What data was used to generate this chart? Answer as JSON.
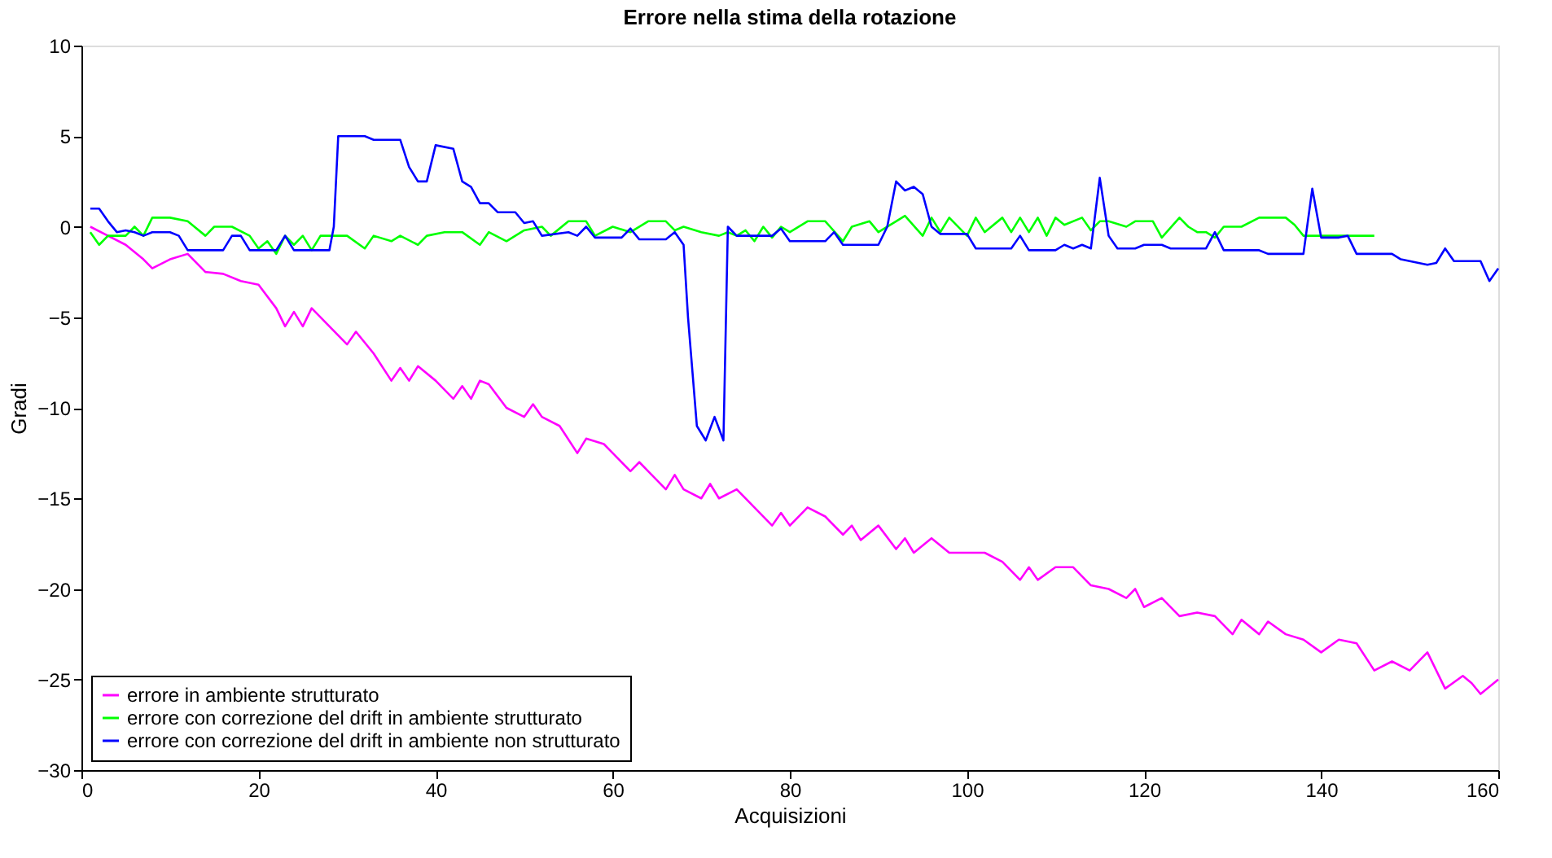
{
  "chart_data": {
    "type": "line",
    "title": "Errore nella stima della rotazione",
    "xlabel": "Acquisizioni",
    "ylabel": "Gradi",
    "xlim": [
      0,
      160
    ],
    "xticks": [
      0,
      20,
      40,
      60,
      80,
      100,
      120,
      140,
      160
    ],
    "ylim": [
      -30,
      10
    ],
    "yticks": [
      -30,
      -25,
      -20,
      -15,
      -10,
      -5,
      0,
      5,
      10
    ],
    "grid": false,
    "legend": "bottom left",
    "marker": "none",
    "line_style": "solid",
    "series": [
      {
        "name": "errore in ambiente strutturato",
        "color": "#ff00ff",
        "x": [
          1,
          3,
          5,
          7,
          8,
          10,
          12,
          14,
          16,
          18,
          20,
          22,
          23,
          24,
          25,
          26,
          28,
          30,
          31,
          33,
          35,
          36,
          37,
          38,
          40,
          42,
          43,
          44,
          45,
          46,
          48,
          50,
          51,
          52,
          54,
          56,
          57,
          59,
          60,
          62,
          63,
          64,
          66,
          67,
          68,
          70,
          71,
          72,
          74,
          76,
          78,
          79,
          80,
          82,
          84,
          86,
          87,
          88,
          90,
          92,
          93,
          94,
          96,
          98,
          100,
          102,
          104,
          106,
          107,
          108,
          110,
          112,
          114,
          116,
          118,
          119,
          120,
          122,
          124,
          126,
          128,
          130,
          131,
          133,
          134,
          136,
          138,
          140,
          142,
          144,
          146,
          148,
          150,
          152,
          154,
          156,
          157,
          158,
          160
        ],
        "values": [
          0,
          -0.5,
          -1,
          -1.8,
          -2.3,
          -1.8,
          -1.5,
          -2.5,
          -2.6,
          -3,
          -3.2,
          -4.5,
          -5.5,
          -4.7,
          -5.5,
          -4.5,
          -5.5,
          -6.5,
          -5.8,
          -7,
          -8.5,
          -7.8,
          -8.5,
          -7.7,
          -8.5,
          -9.5,
          -8.8,
          -9.5,
          -8.5,
          -8.7,
          -10,
          -10.5,
          -9.8,
          -10.5,
          -11,
          -12.5,
          -11.7,
          -12,
          -12.5,
          -13.5,
          -13,
          -13.5,
          -14.5,
          -13.7,
          -14.5,
          -15,
          -14.2,
          -15,
          -14.5,
          -15.5,
          -16.5,
          -15.8,
          -16.5,
          -15.5,
          -16,
          -17,
          -16.5,
          -17.3,
          -16.5,
          -17.8,
          -17.2,
          -18,
          -17.2,
          -18,
          -18,
          -18,
          -18.5,
          -19.5,
          -18.8,
          -19.5,
          -18.8,
          -18.8,
          -19.8,
          -20,
          -20.5,
          -20,
          -21,
          -20.5,
          -21.5,
          -21.3,
          -21.5,
          -22.5,
          -21.7,
          -22.5,
          -21.8,
          -22.5,
          -22.8,
          -23.5,
          -22.8,
          -23,
          -24.5,
          -24,
          -24.5,
          -23.5,
          -25.5,
          -24.8,
          -25.2,
          -25.8,
          -25
        ]
      },
      {
        "name": "errore con correzione del drift in ambiente strutturato",
        "color": "#00ff00",
        "x": [
          1,
          2,
          3,
          5,
          6,
          7,
          8,
          10,
          12,
          14,
          15,
          17,
          19,
          20,
          21,
          22,
          23,
          24,
          25,
          26,
          27,
          29,
          30,
          32,
          33,
          35,
          36,
          38,
          39,
          41,
          43,
          45,
          46,
          48,
          50,
          52,
          53,
          55,
          57,
          58,
          60,
          62,
          64,
          66,
          67,
          68,
          70,
          72,
          73,
          74,
          75,
          76,
          77,
          78,
          79,
          80,
          82,
          84,
          86,
          87,
          89,
          90,
          92,
          93,
          95,
          96,
          97,
          98,
          100,
          101,
          102,
          104,
          105,
          106,
          107,
          108,
          109,
          110,
          111,
          113,
          114,
          115,
          116,
          118,
          119,
          121,
          122,
          124,
          125,
          126,
          127,
          128,
          129,
          131,
          133,
          136,
          137,
          138,
          140,
          146
        ],
        "values": [
          -0.3,
          -1,
          -0.5,
          -0.5,
          0,
          -0.5,
          0.5,
          0.5,
          0.3,
          -0.5,
          0,
          0,
          -0.5,
          -1.2,
          -0.8,
          -1.5,
          -0.5,
          -1,
          -0.5,
          -1.3,
          -0.5,
          -0.5,
          -0.5,
          -1.2,
          -0.5,
          -0.8,
          -0.5,
          -1,
          -0.5,
          -0.3,
          -0.3,
          -1,
          -0.3,
          -0.8,
          -0.2,
          0,
          -0.5,
          0.3,
          0.3,
          -0.5,
          0,
          -0.3,
          0.3,
          0.3,
          -0.2,
          0,
          -0.3,
          -0.5,
          -0.3,
          -0.5,
          -0.2,
          -0.8,
          0,
          -0.6,
          0,
          -0.3,
          0.3,
          0.3,
          -0.8,
          0,
          0.3,
          -0.3,
          0.3,
          0.6,
          -0.5,
          0.5,
          -0.3,
          0.5,
          -0.5,
          0.5,
          -0.3,
          0.5,
          -0.3,
          0.5,
          -0.3,
          0.5,
          -0.5,
          0.5,
          0.1,
          0.5,
          -0.2,
          0.3,
          0.3,
          0,
          0.3,
          0.3,
          -0.6,
          0.5,
          0,
          -0.3,
          -0.3,
          -0.6,
          0,
          0,
          0.5,
          0.5,
          0.1,
          -0.5,
          -0.5,
          -0.5
        ]
      },
      {
        "name": "errore con correzione del drift in ambiente non strutturato",
        "color": "#0000ff",
        "x": [
          1,
          2,
          3,
          4,
          5,
          6,
          7,
          8,
          10,
          11,
          12,
          16,
          17,
          18,
          19,
          22,
          23,
          24,
          28,
          28.5,
          29,
          32,
          33,
          36,
          37,
          38,
          39,
          40,
          42,
          43,
          44,
          45,
          46,
          47,
          49,
          50,
          51,
          52,
          55,
          56,
          57,
          58,
          61,
          62,
          63,
          66,
          67,
          68,
          68.5,
          69.5,
          70.5,
          71.5,
          72.5,
          73,
          74,
          78,
          79,
          80,
          84,
          85,
          86,
          90,
          91,
          92,
          93,
          94,
          95,
          96,
          97,
          100,
          101,
          105,
          106,
          107,
          110,
          111,
          112,
          113,
          114,
          115,
          116,
          117,
          119,
          120,
          122,
          123,
          127,
          128,
          129,
          133,
          134,
          138,
          139,
          140,
          142,
          143,
          144,
          148,
          149,
          152,
          153,
          154,
          155,
          158,
          159,
          160
        ],
        "values": [
          1,
          1,
          0.3,
          -0.3,
          -0.2,
          -0.3,
          -0.5,
          -0.3,
          -0.3,
          -0.5,
          -1.3,
          -1.3,
          -0.5,
          -0.5,
          -1.3,
          -1.3,
          -0.5,
          -1.3,
          -1.3,
          0,
          5,
          5,
          4.8,
          4.8,
          3.3,
          2.5,
          2.5,
          4.5,
          4.3,
          2.5,
          2.2,
          1.3,
          1.3,
          0.8,
          0.8,
          0.2,
          0.3,
          -0.5,
          -0.3,
          -0.5,
          0,
          -0.6,
          -0.6,
          -0.1,
          -0.7,
          -0.7,
          -0.3,
          -1,
          -5,
          -11,
          -11.8,
          -10.5,
          -11.8,
          0,
          -0.5,
          -0.5,
          -0.1,
          -0.8,
          -0.8,
          -0.3,
          -1,
          -1,
          0,
          2.5,
          2,
          2.2,
          1.8,
          0,
          -0.4,
          -0.4,
          -1.2,
          -1.2,
          -0.5,
          -1.3,
          -1.3,
          -1,
          -1.2,
          -1,
          -1.2,
          2.7,
          -0.5,
          -1.2,
          -1.2,
          -1,
          -1,
          -1.2,
          -1.2,
          -0.3,
          -1.3,
          -1.3,
          -1.5,
          -1.5,
          2.1,
          -0.6,
          -0.6,
          -0.5,
          -1.5,
          -1.5,
          -1.8,
          -2.1,
          -2,
          -1.2,
          -1.9,
          -1.9,
          -3,
          -2.3
        ]
      }
    ]
  }
}
